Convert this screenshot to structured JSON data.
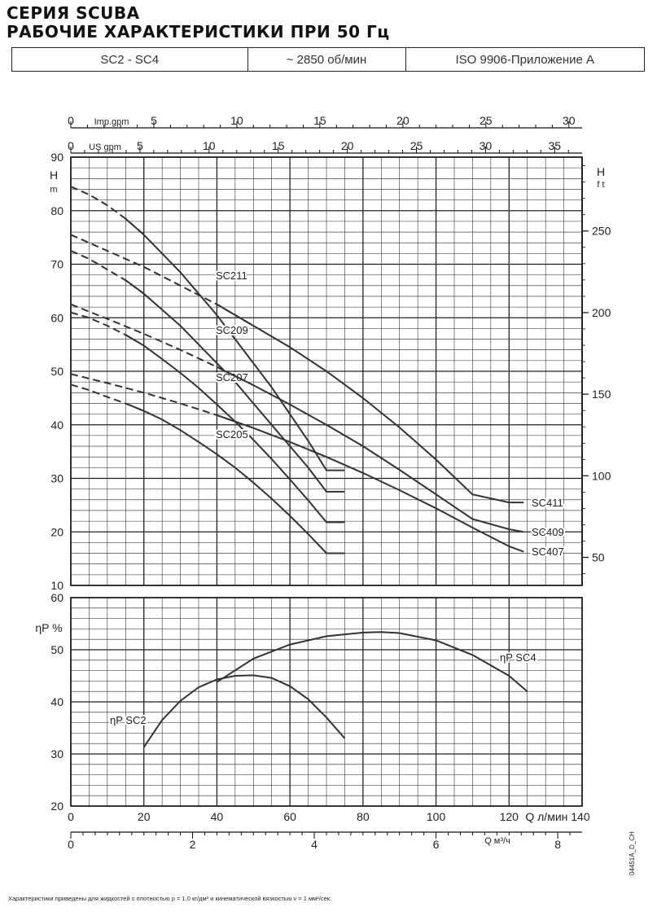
{
  "header": {
    "title_line1": "СЕРИЯ SCUBA",
    "title_line2": "РАБОЧИЕ ХАРАКТЕРИСТИКИ ПРИ 50 Гц",
    "cell_models": "SC2  -  SC4",
    "cell_speed": "~ 2850 об/мин",
    "cell_iso": "ISO 9906-Приложение А"
  },
  "footnote": "Характеристики приведены для жидкостей с плотностью ρ = 1.0 кг/дм³ и кинематической вязкостью ν = 1 мм²/сек.",
  "drawing_code": "04451A_D_CH",
  "chart_data": [
    {
      "type": "line",
      "title": "",
      "xlabel": "Q л/мин",
      "ylabel": "H m",
      "ylabel_right": "H ft",
      "xlim": [
        0,
        140
      ],
      "ylim": [
        10,
        90
      ],
      "x_ticks": [
        0,
        20,
        40,
        60,
        80,
        100,
        120,
        140
      ],
      "y_ticks": [
        10,
        20,
        30,
        40,
        50,
        60,
        70,
        80,
        90
      ],
      "y_right_ticks": [
        50,
        100,
        150,
        200,
        250
      ],
      "top_axis_imp": {
        "label": "Imp.gpm",
        "ticks": [
          0,
          5,
          10,
          15,
          20,
          25,
          30
        ]
      },
      "top_axis_us": {
        "label": "US gpm",
        "ticks": [
          0,
          5,
          10,
          15,
          20,
          25,
          30,
          35
        ]
      },
      "grid": true,
      "series": [
        {
          "name": "SC211",
          "x": [
            0,
            5,
            10,
            15,
            20,
            25,
            30,
            35,
            40,
            45,
            50,
            55,
            60,
            65,
            70,
            75
          ],
          "y": [
            84.5,
            83,
            81,
            78.5,
            75.5,
            72,
            68.5,
            64.5,
            60.5,
            56,
            51.5,
            47,
            42,
            37,
            31.5,
            31.5
          ],
          "dashed_until": 18
        },
        {
          "name": "SC209",
          "x": [
            0,
            5,
            10,
            15,
            20,
            25,
            30,
            35,
            40,
            45,
            50,
            55,
            60,
            65,
            70,
            75
          ],
          "y": [
            72.5,
            71,
            69,
            67,
            64.5,
            61.5,
            58.5,
            55,
            51.5,
            48,
            44,
            40,
            36,
            32,
            27.5,
            27.5
          ],
          "dashed_until": 18
        },
        {
          "name": "SC207",
          "x": [
            0,
            5,
            10,
            15,
            20,
            25,
            30,
            35,
            40,
            45,
            50,
            55,
            60,
            65,
            70,
            75
          ],
          "y": [
            61,
            60,
            58.5,
            56.8,
            54.8,
            52.3,
            49.7,
            46.9,
            43.8,
            40.6,
            37.2,
            33.6,
            29.8,
            25.9,
            21.8,
            21.8
          ],
          "dashed_until": 18
        },
        {
          "name": "SC205",
          "x": [
            0,
            5,
            10,
            15,
            20,
            25,
            30,
            35,
            40,
            45,
            50,
            55,
            60,
            65,
            70,
            75
          ],
          "y": [
            47.5,
            46.5,
            45.2,
            44,
            42.6,
            41,
            39,
            36.8,
            34.5,
            32,
            29.2,
            26.2,
            23,
            19.6,
            16,
            16
          ],
          "dashed_until": 18
        },
        {
          "name": "SC411",
          "x": [
            0,
            10,
            20,
            30,
            40,
            50,
            60,
            70,
            80,
            90,
            100,
            110,
            120,
            124
          ],
          "y": [
            75.5,
            72.5,
            69.5,
            66,
            62.5,
            58.5,
            54.5,
            50,
            45,
            39.5,
            33.5,
            27,
            25.5,
            25.5
          ],
          "dashed_until": 40
        },
        {
          "name": "SC409",
          "x": [
            0,
            10,
            20,
            30,
            40,
            50,
            60,
            70,
            80,
            90,
            100,
            110,
            120,
            124
          ],
          "y": [
            62.5,
            59.8,
            57,
            54,
            50.8,
            47.4,
            43.8,
            40,
            36,
            31.6,
            27,
            22.4,
            20.5,
            20
          ],
          "dashed_until": 40
        },
        {
          "name": "SC407",
          "x": [
            0,
            10,
            20,
            30,
            40,
            50,
            60,
            70,
            80,
            90,
            100,
            110,
            120,
            124
          ],
          "y": [
            49.5,
            47.8,
            46,
            44,
            41.8,
            39.4,
            36.8,
            34,
            31,
            27.8,
            24.4,
            20.8,
            17.3,
            16.3
          ],
          "dashed_until": 40
        }
      ]
    },
    {
      "type": "line",
      "title": "",
      "xlabel": "Q л/мин",
      "ylabel": "ηP %",
      "xlim": [
        0,
        140
      ],
      "ylim": [
        20,
        60
      ],
      "x_ticks": [
        0,
        20,
        40,
        60,
        80,
        100,
        120,
        140
      ],
      "y_ticks": [
        20,
        30,
        40,
        50,
        60
      ],
      "bottom_axis_m3": {
        "label": "Q м³/ч",
        "ticks": [
          0,
          2,
          4,
          6,
          8
        ]
      },
      "grid": true,
      "series": [
        {
          "name": "ηP SC2",
          "x": [
            20,
            25,
            30,
            35,
            40,
            45,
            50,
            55,
            60,
            65,
            70,
            75
          ],
          "y": [
            31.3,
            36.5,
            40.2,
            42.8,
            44.3,
            45,
            45.1,
            44.6,
            43,
            40.5,
            37,
            33
          ]
        },
        {
          "name": "ηP SC4",
          "x": [
            40,
            50,
            60,
            70,
            80,
            85,
            90,
            100,
            110,
            120,
            125
          ],
          "y": [
            43.8,
            48.3,
            51,
            52.6,
            53.3,
            53.4,
            53.2,
            51.8,
            49,
            45,
            42
          ]
        }
      ]
    }
  ]
}
